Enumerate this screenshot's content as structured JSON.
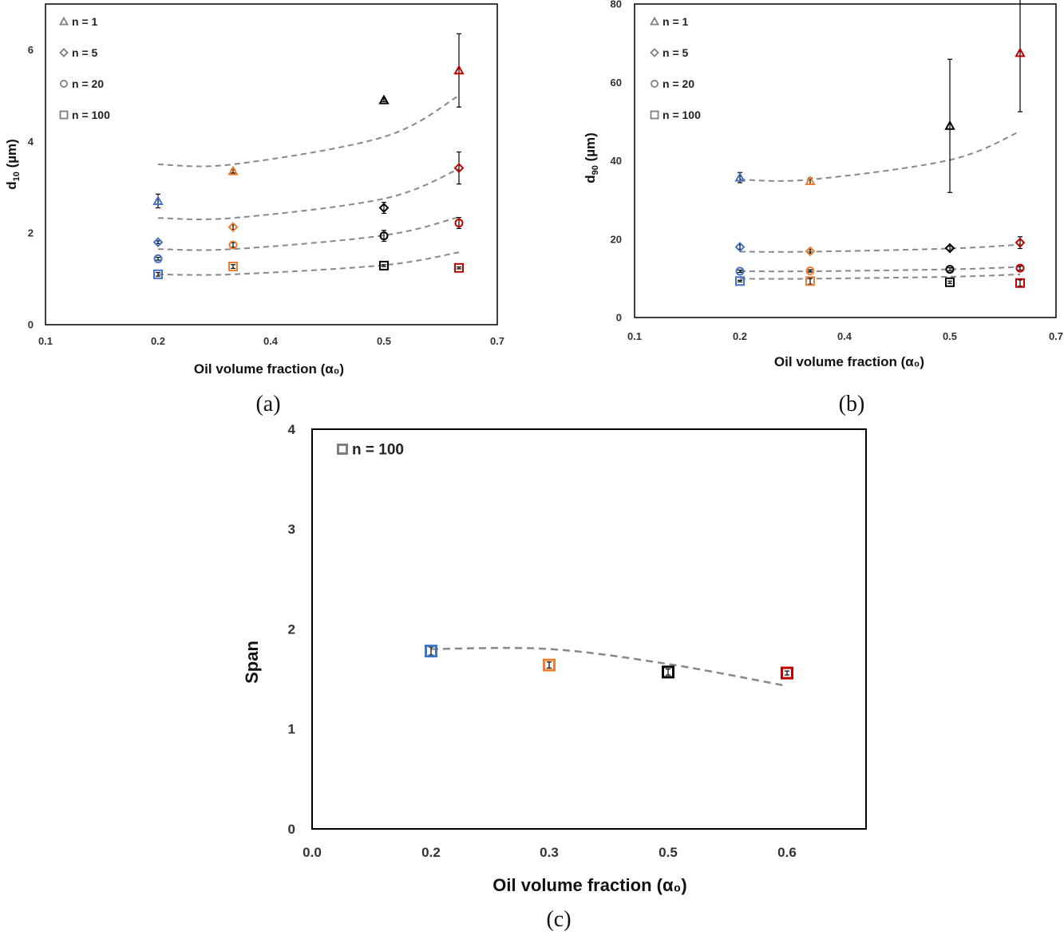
{
  "colors": {
    "marker": [
      "#4472C4",
      "#ED7D31",
      "#000000",
      "#C00000"
    ],
    "fit_line": "#888888",
    "legend_marker": "#7f7f7f"
  },
  "chart_data": [
    {
      "panel": "(a)",
      "type": "scatter",
      "title": "",
      "xlabel": "Oil volume fraction (α₀)",
      "ylabel_main": "d",
      "ylabel_sub": "10",
      "ylabel_tail": " (µm)",
      "xlim": [
        0.1,
        0.7
      ],
      "ylim": [
        0,
        7
      ],
      "xticks": [
        0.1,
        0.2,
        0.4,
        0.5,
        0.7
      ],
      "xtick_labels": [
        "0.1",
        "0.2",
        "0.4",
        "0.5",
        "0.7"
      ],
      "yticks": [
        0,
        2,
        4,
        6
      ],
      "ytick_labels": [
        "0",
        "2",
        "4",
        "6"
      ],
      "grid": false,
      "legend_position": "top-left",
      "series": [
        {
          "name": "n = 1",
          "marker": "triangle",
          "x": [
            0.2,
            0.3,
            0.5,
            0.6
          ],
          "y": [
            2.7,
            3.35,
            4.9,
            5.55
          ],
          "err": [
            0.15,
            0.04,
            0.03,
            0.8
          ],
          "fit": [
            3.5,
            3.5,
            4.1,
            5.0
          ]
        },
        {
          "name": "n = 5",
          "marker": "diamond",
          "x": [
            0.2,
            0.3,
            0.5,
            0.6
          ],
          "y": [
            1.8,
            2.13,
            2.55,
            3.42
          ],
          "err": [
            0.03,
            0.05,
            0.12,
            0.35
          ],
          "fit": [
            2.33,
            2.33,
            2.75,
            3.4
          ]
        },
        {
          "name": "n = 20",
          "marker": "circle",
          "x": [
            0.2,
            0.3,
            0.5,
            0.6
          ],
          "y": [
            1.44,
            1.74,
            1.94,
            2.22
          ],
          "err": [
            0.03,
            0.05,
            0.12,
            0.12
          ],
          "fit": [
            1.65,
            1.65,
            1.95,
            2.35
          ]
        },
        {
          "name": "n = 100",
          "marker": "square",
          "x": [
            0.2,
            0.3,
            0.5,
            0.6
          ],
          "y": [
            1.1,
            1.27,
            1.29,
            1.24
          ],
          "err": [
            0.04,
            0.04,
            0.02,
            0.02
          ],
          "fit": [
            1.1,
            1.1,
            1.3,
            1.58
          ]
        }
      ]
    },
    {
      "panel": "(b)",
      "type": "scatter",
      "title": "",
      "xlabel": "Oil volume fraction (α₀)",
      "ylabel_main": "d",
      "ylabel_sub": "90",
      "ylabel_tail": " (µm)",
      "xlim": [
        0.1,
        0.7
      ],
      "ylim": [
        0,
        80
      ],
      "xticks": [
        0.1,
        0.2,
        0.4,
        0.5,
        0.7
      ],
      "xtick_labels": [
        "0.1",
        "0.2",
        "0.4",
        "0.5",
        "0.7"
      ],
      "yticks": [
        0,
        20,
        40,
        60,
        80
      ],
      "ytick_labels": [
        "0",
        "20",
        "40",
        "60",
        "80"
      ],
      "grid": false,
      "legend_position": "top-left",
      "series": [
        {
          "name": "n = 1",
          "marker": "triangle",
          "x": [
            0.2,
            0.3,
            0.5,
            0.6
          ],
          "y": [
            35.7,
            34.8,
            48.9,
            67.5
          ],
          "err": [
            1.3,
            0.8,
            17,
            15
          ],
          "fit": [
            35.2,
            35.2,
            40.2,
            47.5
          ]
        },
        {
          "name": "n = 5",
          "marker": "diamond",
          "x": [
            0.2,
            0.3,
            0.5,
            0.6
          ],
          "y": [
            18.0,
            16.9,
            17.7,
            19.1
          ],
          "err": [
            0.6,
            0.5,
            0.5,
            1.5
          ],
          "fit": [
            16.8,
            16.8,
            17.6,
            18.6
          ]
        },
        {
          "name": "n = 20",
          "marker": "circle",
          "x": [
            0.2,
            0.3,
            0.5,
            0.6
          ],
          "y": [
            11.8,
            11.9,
            12.3,
            12.6
          ],
          "err": [
            0.3,
            0.3,
            0.4,
            0.5
          ],
          "fit": [
            11.8,
            11.8,
            12.3,
            12.9
          ]
        },
        {
          "name": "n = 100",
          "marker": "square",
          "x": [
            0.2,
            0.3,
            0.5,
            0.6
          ],
          "y": [
            9.3,
            9.3,
            9.0,
            8.8
          ],
          "err": [
            0.2,
            0.8,
            0.3,
            0.8
          ],
          "fit": [
            9.9,
            9.9,
            10.4,
            11.0
          ]
        }
      ]
    },
    {
      "panel": "(c)",
      "type": "scatter",
      "title": "",
      "xlabel": "Oil volume fraction (α₀)",
      "ylabel": "Span",
      "xlim": [
        0.0,
        0.7
      ],
      "ylim": [
        0,
        4
      ],
      "xticks": [
        0.0,
        0.2,
        0.3,
        0.5,
        0.6
      ],
      "xtick_labels": [
        "0.0",
        "0.2",
        "0.3",
        "0.5",
        "0.6"
      ],
      "yticks": [
        0,
        1,
        2,
        3,
        4
      ],
      "ytick_labels": [
        "0",
        "1",
        "2",
        "3",
        "4"
      ],
      "grid": false,
      "legend_position": "top-left",
      "series": [
        {
          "name": "n = 100",
          "marker": "square",
          "x": [
            0.2,
            0.3,
            0.5,
            0.6
          ],
          "y": [
            1.78,
            1.64,
            1.57,
            1.56
          ],
          "err": [
            0.04,
            0.03,
            0.03,
            0.02
          ],
          "fit": [
            1.8,
            1.8,
            1.65,
            1.43
          ]
        }
      ]
    }
  ]
}
